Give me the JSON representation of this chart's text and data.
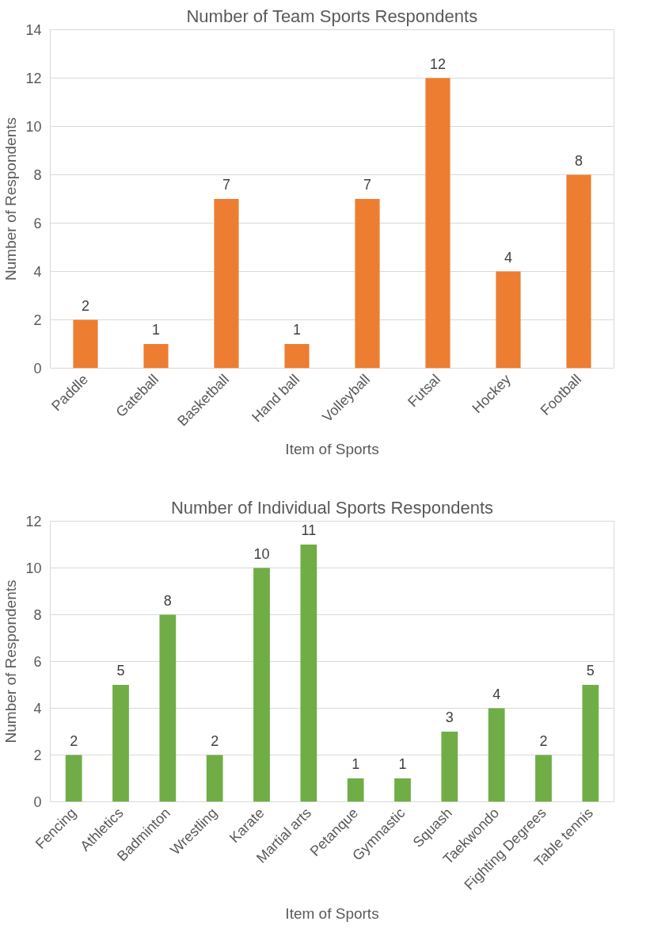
{
  "chart_data": [
    {
      "type": "bar",
      "title": "Number of Team Sports Respondents",
      "xlabel": "Item of Sports",
      "ylabel": "Number of Respondents",
      "categories": [
        "Paddle",
        "Gateball",
        "Basketball",
        "Hand ball",
        "Volleyball",
        "Futsal",
        "Hockey",
        "Football"
      ],
      "values": [
        2,
        1,
        7,
        1,
        7,
        12,
        4,
        8
      ],
      "color": "#ed7d31",
      "ylim": [
        0,
        14
      ],
      "yticks": [
        0,
        2,
        4,
        6,
        8,
        10,
        12,
        14
      ],
      "grid": "y",
      "data_labels": true
    },
    {
      "type": "bar",
      "title": "Number of Individual Sports Respondents",
      "xlabel": "Item of Sports",
      "ylabel": "Number of Respondents",
      "categories": [
        "Fencing",
        "Athletics",
        "Badminton",
        "Wrestling",
        "Karate",
        "Martial arts",
        "Petanque",
        "Gymnastic",
        "Squash",
        "Taekwondo",
        "Fighting Degrees",
        "Table tennis"
      ],
      "values": [
        2,
        5,
        8,
        2,
        10,
        11,
        1,
        1,
        3,
        4,
        2,
        5
      ],
      "color": "#70ad47",
      "ylim": [
        0,
        12
      ],
      "yticks": [
        0,
        2,
        4,
        6,
        8,
        10,
        12
      ],
      "grid": "y",
      "data_labels": true
    }
  ]
}
